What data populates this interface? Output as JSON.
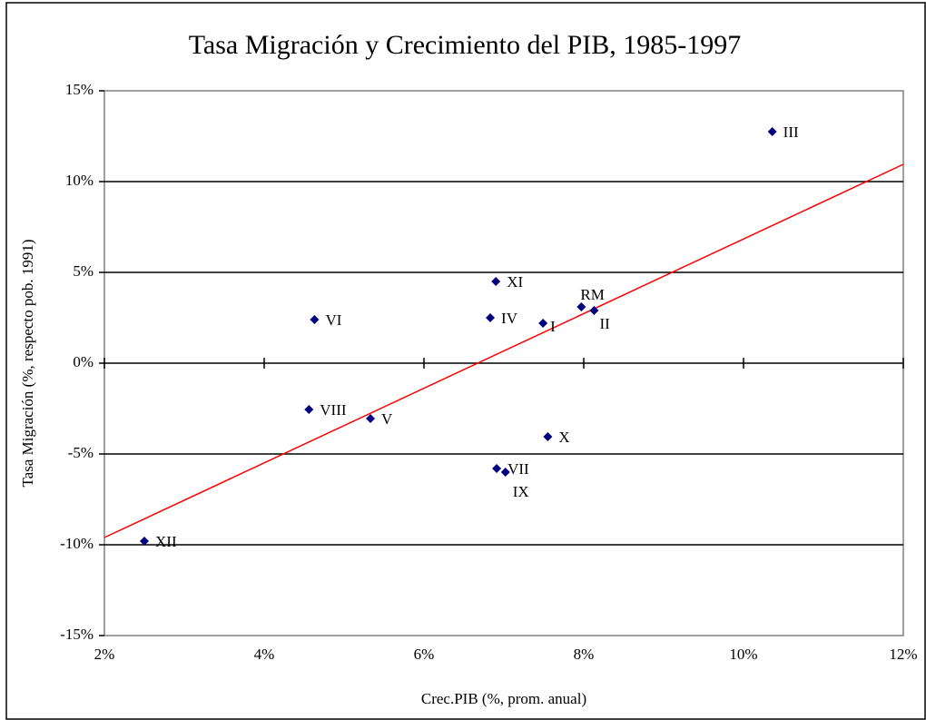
{
  "chart_data": {
    "type": "scatter",
    "title": "Tasa Migración y Crecimiento del PIB, 1985-1997",
    "x_label": "Crec.PIB (%, prom. anual)",
    "y_label": "Tasa Migración (%, respecto pob. 1991)",
    "categories": [
      "III",
      "XI",
      "RM",
      "II",
      "IV",
      "VI",
      "I",
      "VIII",
      "V",
      "X",
      "VII",
      "IX",
      "XII"
    ],
    "x": [
      10.36,
      6.9,
      7.97,
      8.13,
      6.83,
      4.63,
      7.49,
      4.56,
      5.33,
      7.55,
      6.91,
      7.02,
      2.5
    ],
    "values": [
      12.75,
      4.5,
      3.1,
      2.9,
      2.5,
      2.4,
      2.2,
      -2.55,
      -3.05,
      -4.05,
      -5.8,
      -6.0,
      -9.8
    ],
    "color": "#000080",
    "trendline": {
      "x": [
        2,
        12
      ],
      "y": [
        -9.6,
        10.95
      ],
      "color": "#ff0000"
    },
    "xlim": [
      2,
      12
    ],
    "ylim": [
      -15,
      15
    ],
    "xticks": [
      {
        "value": 2,
        "label": "2%"
      },
      {
        "value": 4,
        "label": "4%"
      },
      {
        "value": 6,
        "label": "6%"
      },
      {
        "value": 8,
        "label": "8%"
      },
      {
        "value": 10,
        "label": "10%"
      },
      {
        "value": 12,
        "label": "12%"
      }
    ],
    "yticks": [
      {
        "value": -15,
        "label": "-15%"
      },
      {
        "value": -10,
        "label": "-10%"
      },
      {
        "value": -5,
        "label": "-5%"
      },
      {
        "value": 0,
        "label": "0%"
      },
      {
        "value": 5,
        "label": "5%"
      },
      {
        "value": 10,
        "label": "10%"
      },
      {
        "value": 15,
        "label": "15%"
      }
    ],
    "grid": true
  }
}
